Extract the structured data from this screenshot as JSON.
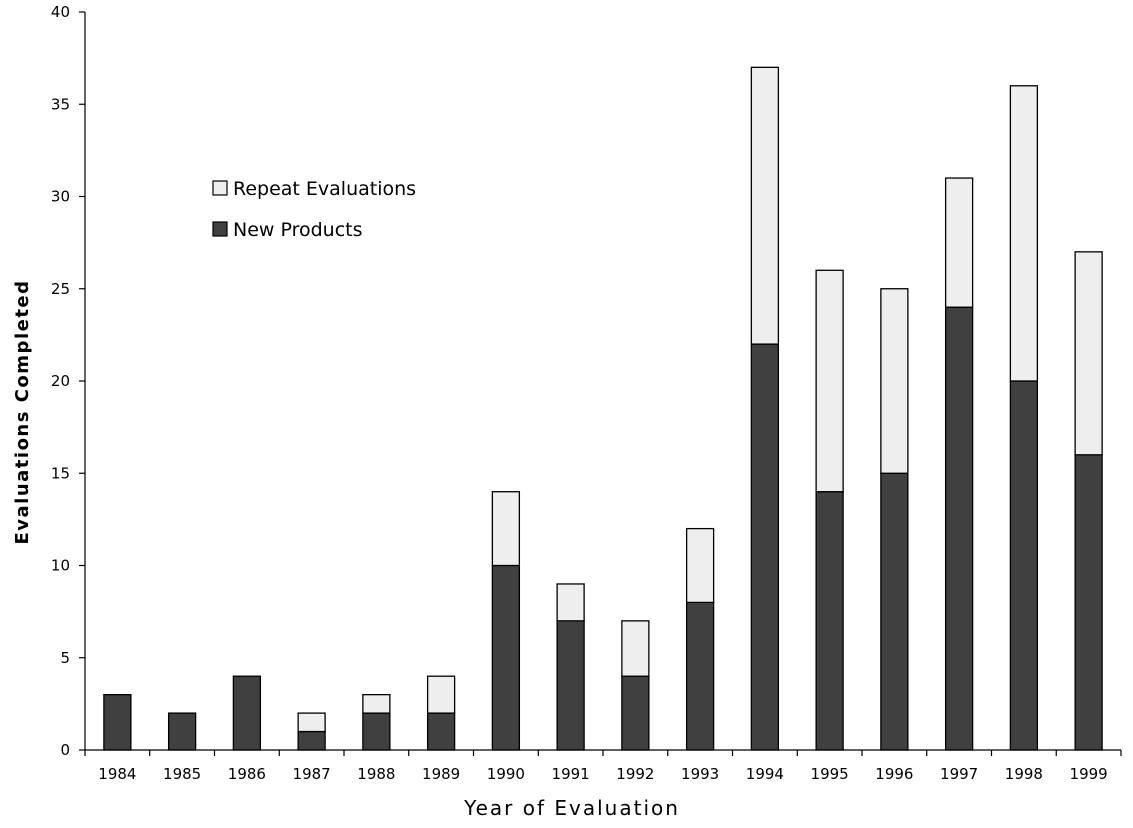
{
  "chart_data": {
    "type": "bar",
    "stacked": true,
    "title": "",
    "xlabel": "Year of Evaluation",
    "ylabel": "Evaluations Completed",
    "categories": [
      "1984",
      "1985",
      "1986",
      "1987",
      "1988",
      "1989",
      "1990",
      "1991",
      "1992",
      "1993",
      "1994",
      "1995",
      "1996",
      "1997",
      "1998",
      "1999"
    ],
    "series": [
      {
        "name": "New Products",
        "color": "#404040",
        "values": [
          3,
          2,
          4,
          1,
          2,
          2,
          10,
          7,
          4,
          8,
          22,
          14,
          15,
          24,
          20,
          16
        ]
      },
      {
        "name": "Repeat Evaluations",
        "color": "#eeeeee",
        "values": [
          0,
          0,
          0,
          1,
          1,
          2,
          4,
          2,
          3,
          4,
          15,
          12,
          10,
          7,
          16,
          11
        ]
      }
    ],
    "ylim": [
      0,
      40
    ],
    "yticks": [
      0,
      5,
      10,
      15,
      20,
      25,
      30,
      35,
      40
    ],
    "grid": false,
    "legend_position": "top-left",
    "legend_order": [
      "Repeat Evaluations",
      "New Products"
    ]
  }
}
